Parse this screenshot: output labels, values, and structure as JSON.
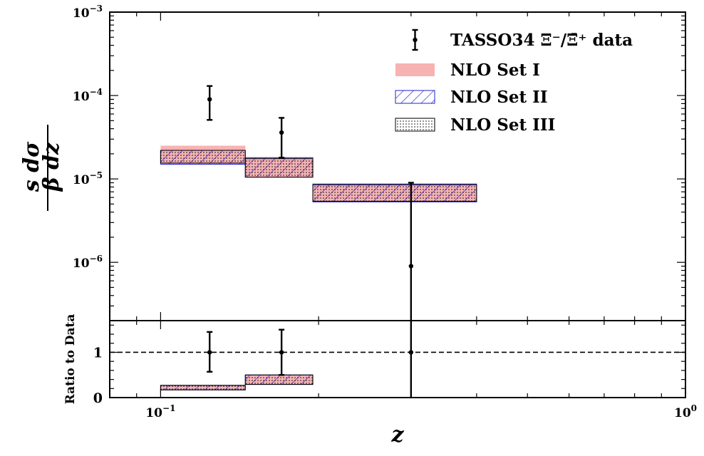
{
  "chart_data": {
    "type": "step-band",
    "xscale": "log",
    "xlim": [
      0.08,
      1.0
    ],
    "xlabel": "z",
    "x_tick_labels": [
      {
        "value": 0.1,
        "base": "10",
        "exp": "−1"
      },
      {
        "value": 1.0,
        "base": "10",
        "exp": "0"
      }
    ],
    "top_panel": {
      "yscale": "log",
      "ylim": [
        2e-07,
        0.001
      ],
      "ylabel": {
        "numerator": "s dσ",
        "denominator": "β dz"
      },
      "y_tick_labels": [
        {
          "value": 0.001,
          "base": "10",
          "exp": "−3"
        },
        {
          "value": 0.0001,
          "base": "10",
          "exp": "−4"
        },
        {
          "value": 1e-05,
          "base": "10",
          "exp": "−5"
        },
        {
          "value": 1e-06,
          "base": "10",
          "exp": "−6"
        }
      ],
      "data": {
        "name": "TASSO34 Ξ⁻/Ξ̄⁺ data",
        "points": [
          {
            "x": 0.124,
            "y": 9e-05,
            "ylo": 5.1e-05,
            "yhi": 0.00013
          },
          {
            "x": 0.17,
            "y": 3.6e-05,
            "ylo": 1.8e-05,
            "yhi": 5.4e-05
          },
          {
            "x": 0.3,
            "y": 9e-07,
            "ylo": 1e-08,
            "yhi": 9e-06
          }
        ]
      },
      "bands": [
        {
          "name": "NLO Set I",
          "style": "fill",
          "color": "#f7b2b2",
          "bins": [
            {
              "x0": 0.1,
              "x1": 0.145,
              "lo": 1.5e-05,
              "hi": 2.5e-05
            },
            {
              "x0": 0.145,
              "x1": 0.195,
              "lo": 1.05e-05,
              "hi": 1.8e-05
            },
            {
              "x0": 0.195,
              "x1": 0.4,
              "lo": 5.3e-06,
              "hi": 8.7e-06
            }
          ]
        },
        {
          "name": "NLO Set II",
          "style": "hatch",
          "color": "#2222cc",
          "bins": [
            {
              "x0": 0.1,
              "x1": 0.145,
              "lo": 1.5e-05,
              "hi": 2.2e-05
            },
            {
              "x0": 0.145,
              "x1": 0.195,
              "lo": 1.05e-05,
              "hi": 1.8e-05
            },
            {
              "x0": 0.195,
              "x1": 0.4,
              "lo": 5.3e-06,
              "hi": 8.7e-06
            }
          ]
        },
        {
          "name": "NLO Set III",
          "style": "dots",
          "color": "#000000",
          "bins": [
            {
              "x0": 0.1,
              "x1": 0.145,
              "lo": 1.55e-05,
              "hi": 2.2e-05
            },
            {
              "x0": 0.145,
              "x1": 0.195,
              "lo": 1.05e-05,
              "hi": 1.75e-05
            },
            {
              "x0": 0.195,
              "x1": 0.4,
              "lo": 5.4e-06,
              "hi": 8.5e-06
            }
          ]
        }
      ],
      "legend_position": "top-right"
    },
    "ratio_panel": {
      "ylabel": "Ratio to Data",
      "ylim": [
        0,
        1.7
      ],
      "y_ticks": [
        0,
        1
      ],
      "y_tick_labels": [
        "0",
        "1"
      ],
      "reference_line": 1,
      "data": [
        {
          "x": 0.124,
          "y": 1,
          "ylo": 0.57,
          "yhi": 1.45
        },
        {
          "x": 0.17,
          "y": 1,
          "ylo": 0.5,
          "yhi": 1.5
        },
        {
          "x": 0.3,
          "y": 1,
          "ylo": 0,
          "yhi": 10
        }
      ],
      "bands": [
        {
          "bins": [
            {
              "x0": 0.1,
              "x1": 0.145,
              "lo": 0.17,
              "hi": 0.27
            },
            {
              "x0": 0.145,
              "x1": 0.195,
              "lo": 0.29,
              "hi": 0.5
            }
          ]
        }
      ]
    }
  }
}
